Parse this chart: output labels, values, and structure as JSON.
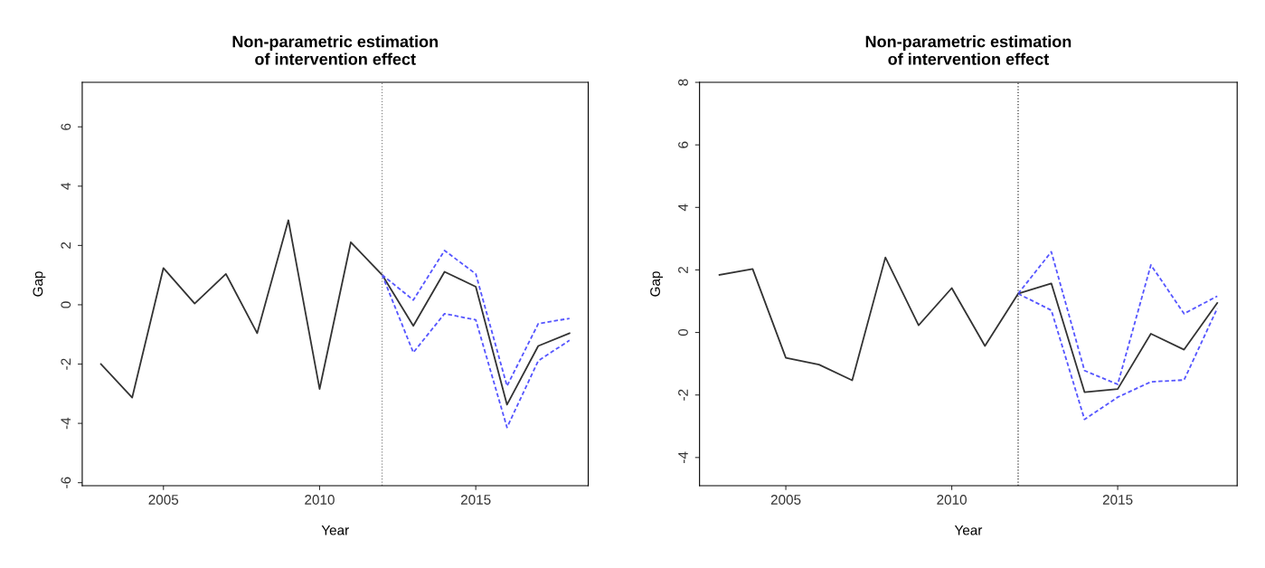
{
  "chart_data": [
    {
      "type": "line",
      "title": "Non-parametric estimation\nof intervention effect",
      "xlabel": "Year",
      "ylabel": "Gap",
      "x": [
        2003,
        2004,
        2005,
        2006,
        2007,
        2008,
        2009,
        2010,
        2011,
        2012,
        2013,
        2014,
        2015,
        2016,
        2017,
        2018
      ],
      "series": [
        {
          "color": "#333333",
          "line_style": "solid",
          "values": [
            -2.0,
            -3.13,
            1.24,
            0.04,
            1.04,
            -0.96,
            2.85,
            -2.84,
            2.11,
            1.01,
            -0.71,
            1.11,
            0.61,
            -3.37,
            -1.39,
            -0.96
          ]
        },
        {
          "color": "#5555ff",
          "line_style": "dashed",
          "x": [
            2012,
            2013,
            2014,
            2015,
            2016,
            2017,
            2018
          ],
          "values": [
            1.01,
            0.16,
            1.83,
            1.04,
            -2.74,
            -0.64,
            -0.46
          ]
        },
        {
          "color": "#5555ff",
          "line_style": "dashed",
          "x": [
            2012,
            2013,
            2014,
            2015,
            2016,
            2017,
            2018
          ],
          "values": [
            1.01,
            -1.61,
            -0.3,
            -0.51,
            -4.14,
            -1.89,
            -1.2
          ]
        }
      ],
      "xlim": [
        2002.4,
        2018.6
      ],
      "xticks": [
        2005,
        2010,
        2015
      ],
      "ylim": [
        -6.1,
        7.5
      ],
      "yticks": [
        -6,
        -4,
        -2,
        0,
        2,
        4,
        6
      ],
      "ref_lines": [
        {
          "axis": "x",
          "value": 2012,
          "color": "#888888",
          "line_style": "dotted"
        }
      ],
      "grid": false,
      "marker": "none"
    },
    {
      "type": "line",
      "title": "Non-parametric estimation\nof intervention effect",
      "xlabel": "Year",
      "ylabel": "Gap",
      "x": [
        2003,
        2004,
        2005,
        2006,
        2007,
        2008,
        2009,
        2010,
        2011,
        2012,
        2013,
        2014,
        2015,
        2016,
        2017,
        2018
      ],
      "series": [
        {
          "color": "#333333",
          "line_style": "solid",
          "values": [
            1.84,
            2.03,
            -0.81,
            -1.03,
            -1.53,
            2.4,
            0.23,
            1.42,
            -0.43,
            1.24,
            1.57,
            -1.91,
            -1.81,
            -0.04,
            -0.55,
            0.94
          ]
        },
        {
          "color": "#5555ff",
          "line_style": "dashed",
          "x": [
            2012,
            2013,
            2014,
            2015,
            2016,
            2017,
            2018
          ],
          "values": [
            1.24,
            2.58,
            -1.22,
            -1.66,
            2.16,
            0.6,
            1.16
          ]
        },
        {
          "color": "#5555ff",
          "line_style": "dashed",
          "x": [
            2012,
            2013,
            2014,
            2015,
            2016,
            2017,
            2018
          ],
          "values": [
            1.24,
            0.71,
            -2.78,
            -2.07,
            -1.58,
            -1.52,
            0.77
          ]
        }
      ],
      "xlim": [
        2002.4,
        2018.6
      ],
      "xticks": [
        2005,
        2010,
        2015
      ],
      "ylim": [
        -4.9,
        8
      ],
      "yticks": [
        -4,
        -2,
        0,
        2,
        4,
        6,
        8
      ],
      "ref_lines": [
        {
          "axis": "x",
          "value": 2012,
          "color": "#333333",
          "line_style": "dotted"
        }
      ],
      "grid": false,
      "marker": "none"
    }
  ]
}
